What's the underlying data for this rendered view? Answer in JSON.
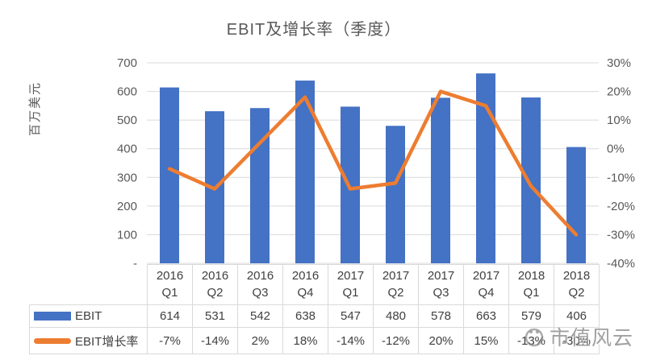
{
  "chart_data": {
    "type": "bar+line",
    "title": "EBIT及增长率（季度）",
    "categories": [
      "2016 Q1",
      "2016 Q2",
      "2016 Q3",
      "2016 Q4",
      "2017 Q1",
      "2017 Q2",
      "2017 Q3",
      "2017 Q4",
      "2018 Q1",
      "2018 Q2"
    ],
    "series": [
      {
        "name": "EBIT",
        "type": "bar",
        "axis": "left",
        "color": "#4472C4",
        "values": [
          614,
          531,
          542,
          638,
          547,
          480,
          578,
          663,
          579,
          406
        ],
        "labels": [
          "614",
          "531",
          "542",
          "638",
          "547",
          "480",
          "578",
          "663",
          "579",
          "406"
        ]
      },
      {
        "name": "EBIT增长率",
        "type": "line",
        "axis": "right",
        "color": "#ED7D31",
        "values": [
          -7,
          -14,
          2,
          18,
          -14,
          -12,
          20,
          15,
          -13,
          -30
        ],
        "labels": [
          "-7%",
          "-14%",
          "2%",
          "18%",
          "-14%",
          "-12%",
          "20%",
          "15%",
          "-13%",
          "-30%"
        ]
      }
    ],
    "left_axis": {
      "title": "百万美元",
      "min": 0,
      "max": 700,
      "ticks": [
        {
          "label": "700",
          "v": 700
        },
        {
          "label": "600",
          "v": 600
        },
        {
          "label": "500",
          "v": 500
        },
        {
          "label": "400",
          "v": 400
        },
        {
          "label": "300",
          "v": 300
        },
        {
          "label": "200",
          "v": 200
        },
        {
          "label": "100",
          "v": 100
        },
        {
          "label": "-",
          "v": 0
        }
      ]
    },
    "right_axis": {
      "min": -40,
      "max": 30,
      "ticks": [
        {
          "label": "30%",
          "v": 30
        },
        {
          "label": "20%",
          "v": 20
        },
        {
          "label": "10%",
          "v": 10
        },
        {
          "label": "0%",
          "v": 0
        },
        {
          "label": "-10%",
          "v": -10
        },
        {
          "label": "-20%",
          "v": -20
        },
        {
          "label": "-30%",
          "v": -30
        },
        {
          "label": "-40%",
          "v": -40
        }
      ]
    },
    "grid": true,
    "grid_color": "#d9d9d9",
    "text_color": "#595959",
    "legend_position": "data-table-left"
  },
  "watermark": {
    "text": "市值风云"
  }
}
